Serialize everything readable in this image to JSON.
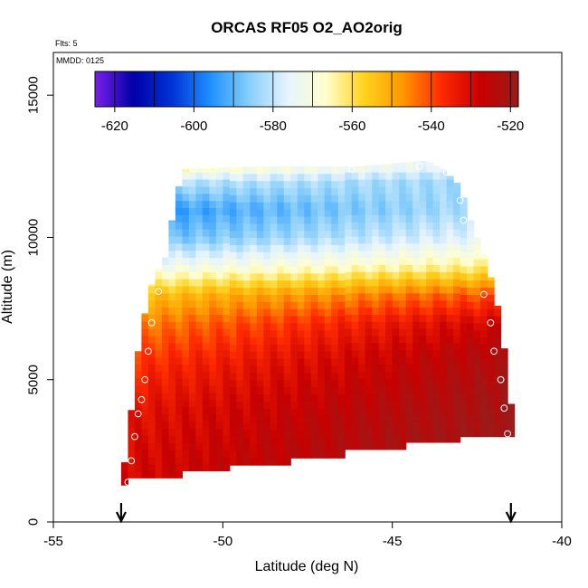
{
  "chart_data": {
    "type": "heatmap",
    "title": "ORCAS RF05 O2_AO2orig",
    "flights_note": "Flts: 5",
    "date_note": "MMDD: 0125",
    "xlabel": "Latitude (deg N)",
    "ylabel": "Altitude (m)",
    "xlim": [
      -55,
      -40
    ],
    "ylim": [
      0,
      16500
    ],
    "x_ticks": [
      -55,
      -50,
      -45,
      -40
    ],
    "x_tick_labels": [
      "-55",
      "-50",
      "-45",
      "-40"
    ],
    "y_ticks": [
      0,
      5000,
      10000,
      15000
    ],
    "y_tick_labels": [
      "0",
      "5000",
      "10000",
      "15000"
    ],
    "colorbar": {
      "range": [
        -625,
        -518
      ],
      "ticks": [
        -620,
        -600,
        -580,
        -560,
        -540,
        -520
      ],
      "tick_labels": [
        "-620",
        "-600",
        "-580",
        "-560",
        "-540",
        "-520"
      ],
      "legend_placement": "top, inside plot",
      "colors": [
        "#7a1fe8",
        "#0000a8",
        "#0033d6",
        "#1e90ff",
        "#87cefa",
        "#e6f4ff",
        "#ffffcc",
        "#ffd21e",
        "#ff9600",
        "#ff2a00",
        "#c80000",
        "#9b1a1a"
      ]
    },
    "x_extent": [
      -53.0,
      -41.4
    ],
    "bottom_steps": [
      {
        "lat_start": -53.0,
        "lat_end": -52.7,
        "bottom_alt": 1300
      },
      {
        "lat_start": -52.7,
        "lat_end": -51.2,
        "bottom_alt": 1550
      },
      {
        "lat_start": -51.2,
        "lat_end": -49.7,
        "bottom_alt": 1800
      },
      {
        "lat_start": -49.7,
        "lat_end": -47.9,
        "bottom_alt": 2000
      },
      {
        "lat_start": -47.9,
        "lat_end": -46.4,
        "bottom_alt": 2250
      },
      {
        "lat_start": -46.4,
        "lat_end": -44.6,
        "bottom_alt": 2550
      },
      {
        "lat_start": -44.6,
        "lat_end": -43.0,
        "bottom_alt": 2800
      },
      {
        "lat_start": -43.0,
        "lat_end": -41.4,
        "bottom_alt": 3000
      }
    ],
    "top_profile": {
      "lat": [
        -53.0,
        -52.8,
        -52.5,
        -52.2,
        -52.0,
        -51.6,
        -51.5,
        -51.2,
        -49.0,
        -46.0,
        -44.0,
        -43.5,
        -43.0,
        -42.7,
        -42.3,
        -42.0,
        -41.8,
        -41.6,
        -41.4
      ],
      "alt": [
        1300,
        2900,
        6000,
        8000,
        8700,
        9500,
        10600,
        12400,
        12500,
        12500,
        12700,
        12400,
        11800,
        10600,
        9400,
        8200,
        7000,
        5200,
        3100
      ]
    },
    "value_profile_south": {
      "alt": [
        2000,
        4000,
        5500,
        7000,
        8000,
        9000,
        10000,
        11000,
        12000,
        12500
      ],
      "value": [
        -530,
        -533,
        -538,
        -546,
        -555,
        -574,
        -590,
        -596,
        -580,
        -562
      ]
    },
    "value_profile_north": {
      "alt": [
        3000,
        4500,
        6000,
        7000,
        8000,
        9000,
        10000,
        11000,
        12000,
        12500
      ],
      "value": [
        -518,
        -520,
        -523,
        -528,
        -540,
        -562,
        -575,
        -581,
        -584,
        -578
      ]
    },
    "flight_track_points": [
      {
        "lat": -52.8,
        "alt": 1400
      },
      {
        "lat": -52.7,
        "alt": 2150
      },
      {
        "lat": -52.6,
        "alt": 3000
      },
      {
        "lat": -52.5,
        "alt": 3800
      },
      {
        "lat": -52.4,
        "alt": 4300
      },
      {
        "lat": -52.3,
        "alt": 5000
      },
      {
        "lat": -52.2,
        "alt": 6000
      },
      {
        "lat": -52.1,
        "alt": 7000
      },
      {
        "lat": -51.9,
        "alt": 8100
      },
      {
        "lat": -51.9,
        "alt": 9300
      },
      {
        "lat": -51.7,
        "alt": 10800
      },
      {
        "lat": -50.3,
        "alt": 12400
      },
      {
        "lat": -46.2,
        "alt": 12400
      },
      {
        "lat": -44.2,
        "alt": 12500
      },
      {
        "lat": -43.4,
        "alt": 12300
      },
      {
        "lat": -43.0,
        "alt": 11300
      },
      {
        "lat": -42.9,
        "alt": 10600
      },
      {
        "lat": -42.5,
        "alt": 9400
      },
      {
        "lat": -42.3,
        "alt": 8000
      },
      {
        "lat": -42.1,
        "alt": 7000
      },
      {
        "lat": -42.0,
        "alt": 6000
      },
      {
        "lat": -41.8,
        "alt": 5000
      },
      {
        "lat": -41.7,
        "alt": 4000
      },
      {
        "lat": -41.6,
        "alt": 3100
      }
    ],
    "markers": [
      {
        "lat": -53.0,
        "name": "down-arrow"
      },
      {
        "lat": -41.5,
        "name": "down-arrow"
      }
    ],
    "grid": false
  }
}
